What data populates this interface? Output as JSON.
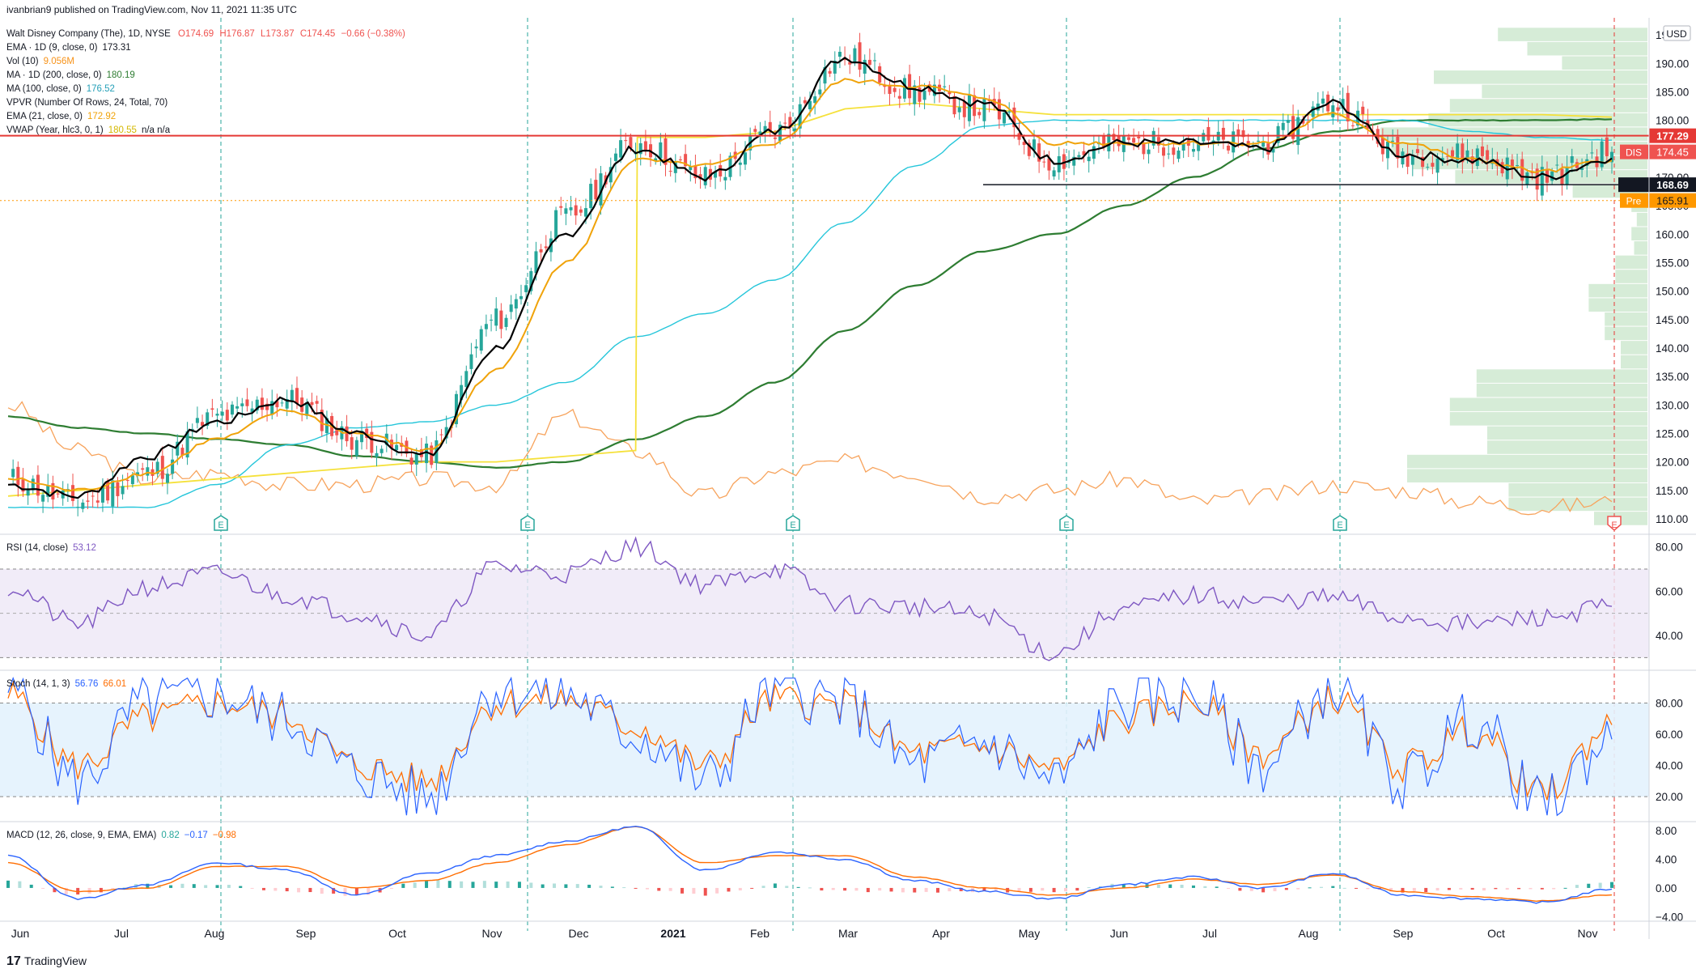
{
  "header": {
    "publisher": "ivanbrian9 published on TradingView.com, Nov 11, 2021 11:35 UTC"
  },
  "footer": {
    "brand": "TradingView"
  },
  "legend": {
    "symbol": {
      "name": "Walt Disney Company (The), 1D, NYSE",
      "o": "O174.69",
      "h": "H176.87",
      "l": "L173.87",
      "c": "C174.45",
      "chg": "−0.66 (−0.38%)"
    },
    "ema9": {
      "label": "EMA · 1D (9, close, 0)",
      "value": "173.31",
      "color": "#000000"
    },
    "vol": {
      "label": "Vol (10)",
      "value": "9.056M",
      "color": "#f7931a"
    },
    "ma200": {
      "label": "MA · 1D (200, close, 0)",
      "value": "180.19",
      "color": "#2e7d32"
    },
    "ma100": {
      "label": "MA (100, close, 0)",
      "value": "176.52",
      "color": "#26c6da"
    },
    "vpvr": {
      "label": "VPVR (Number Of Rows, 24, Total, 70)"
    },
    "ema21": {
      "label": "EMA (21, close, 0)",
      "value": "172.92",
      "color": "#f0a30a"
    },
    "vwap": {
      "label": "VWAP (Year, hlc3, 0, 1)",
      "value": "180.55",
      "extra": "n/a  n/a",
      "color": "#f5e13b"
    }
  },
  "rsi_legend": {
    "label": "RSI (14, close)",
    "value": "53.12",
    "color": "#7e57c2"
  },
  "stoch_legend": {
    "label": "Stoch (14, 1, 3)",
    "k": "56.76",
    "d": "66.01",
    "k_color": "#2962ff",
    "d_color": "#ff6d00"
  },
  "macd_legend": {
    "label": "MACD (12, 26, close, 9, EMA, EMA)",
    "hist": "0.82",
    "macd": "−0.17",
    "signal": "−0.98",
    "hist_color": "#26a69a",
    "macd_color": "#2962ff",
    "signal_color": "#ff6d00"
  },
  "price_labels": {
    "currency": "USD",
    "resistance": "177.29",
    "ticker": "DIS",
    "last": "174.45",
    "support": "168.69",
    "pre_tag": "Pre",
    "pre": "165.91"
  },
  "earnings_marker": "E",
  "chart_data": [
    {
      "type": "candlestick",
      "panel": "price",
      "title": "Walt Disney Company (The), 1D, NYSE",
      "x_ticks": [
        "Jun",
        "Jul",
        "Aug",
        "Sep",
        "Oct",
        "Nov",
        "Dec",
        "2021",
        "Feb",
        "Mar",
        "Apr",
        "May",
        "Jun",
        "Jul",
        "Aug",
        "Sep",
        "Oct",
        "Nov"
      ],
      "y_ticks": [
        "195.00",
        "190.00",
        "185.00",
        "180.00",
        "175.00",
        "170.00",
        "165.00",
        "160.00",
        "155.00",
        "150.00",
        "145.00",
        "140.00",
        "135.00",
        "130.00",
        "125.00",
        "120.00",
        "115.00",
        "110.00"
      ],
      "ylim": [
        108,
        198
      ],
      "close_path": {
        "x": [
          "2020-06",
          "2020-07",
          "2020-08",
          "2020-08-15",
          "2020-09",
          "2020-10",
          "2020-11",
          "2020-11-15",
          "2020-12",
          "2021-01",
          "2021-01-25",
          "2021-02",
          "2021-03",
          "2021-04",
          "2021-05",
          "2021-05-20",
          "2021-06",
          "2021-07",
          "2021-08",
          "2021-09",
          "2021-09-20",
          "2021-10",
          "2021-11",
          "2021-11-10"
        ],
        "y": [
          117,
          113,
          118,
          128,
          131,
          124,
          121,
          145,
          163,
          176,
          170,
          178,
          191,
          185,
          182,
          173,
          176,
          176,
          176,
          183,
          174,
          174,
          170,
          174.45
        ]
      },
      "series": [
        {
          "name": "EMA · 1D (9, close, 0)",
          "values": [
            116,
            114,
            121,
            127,
            131,
            125,
            121,
            140,
            160,
            175,
            170,
            178,
            191,
            186,
            183,
            173,
            176,
            176,
            175,
            183,
            174,
            173,
            170,
            173.31
          ]
        },
        {
          "name": "EMA (21, close, 0)",
          "values": [
            117,
            115,
            118,
            124,
            129,
            125,
            122,
            136,
            155,
            173,
            172,
            176,
            187,
            186,
            184,
            176,
            176,
            176,
            176,
            181,
            176,
            173,
            171,
            172.92
          ]
        },
        {
          "name": "MA (100, close, 0)",
          "values": [
            112,
            112,
            112,
            116,
            123,
            126,
            127,
            130,
            134,
            142,
            146,
            152,
            162,
            172,
            179,
            180,
            180,
            180,
            180,
            180,
            180,
            178,
            177,
            176.52
          ]
        },
        {
          "name": "MA · 1D (200, close, 0)",
          "values": [
            128,
            126,
            125,
            124,
            123,
            121,
            120,
            119,
            120,
            124,
            128,
            134,
            143,
            151,
            157,
            160,
            165,
            170,
            175,
            178,
            180,
            180,
            180,
            180.19
          ]
        },
        {
          "name": "VWAP (Year, hlc3, 0, 1)",
          "values": [
            114,
            115,
            116,
            117,
            118,
            119,
            120,
            120,
            121,
            122,
            177,
            178,
            182,
            183,
            182,
            181,
            181,
            181,
            181,
            181,
            181,
            181,
            181,
            180.55
          ]
        }
      ],
      "horizontal_lines": [
        {
          "name": "resistance",
          "value": 177.29,
          "color": "#e53935"
        },
        {
          "name": "support",
          "value": 168.69,
          "color": "#131722"
        },
        {
          "name": "pre-market",
          "value": 165.91,
          "color": "#ff9800"
        }
      ],
      "volume_profile_price_levels": [
        195,
        192.5,
        190,
        187.5,
        185,
        182.5,
        180,
        177.5,
        175,
        172.5,
        170,
        167.5,
        165,
        162.5,
        160,
        157.5,
        155,
        152.5,
        150,
        147.5,
        145,
        142.5,
        140,
        137.5,
        135,
        132.5,
        130,
        127.5,
        125,
        122.5,
        120,
        117.5,
        115,
        112.5,
        110
      ],
      "volume_profile_relative": [
        0.56,
        0.45,
        0.32,
        0.8,
        0.62,
        0.74,
        0.82,
        1.0,
        0.96,
        0.88,
        0.72,
        0.28,
        0.06,
        0.04,
        0.06,
        0.05,
        0.12,
        0.12,
        0.22,
        0.22,
        0.16,
        0.16,
        0.1,
        0.1,
        0.64,
        0.64,
        0.74,
        0.74,
        0.6,
        0.6,
        0.9,
        0.9,
        0.52,
        0.52,
        0.2
      ],
      "earnings_markers": [
        "2020-08",
        "2020-11",
        "2021-02",
        "2021-05",
        "2021-08",
        "2021-11"
      ],
      "volume_ma10": [
        130,
        122,
        117,
        118,
        116,
        116,
        117,
        116,
        128,
        122,
        114,
        118,
        120,
        118,
        114,
        115,
        117,
        113,
        114,
        116,
        115,
        113,
        112,
        113
      ]
    },
    {
      "type": "line",
      "panel": "rsi",
      "title": "RSI (14, close)",
      "y_ticks": [
        "80.00",
        "60.00",
        "40.00"
      ],
      "ylim": [
        25,
        85
      ],
      "bands": [
        30,
        70
      ],
      "values": [
        62,
        45,
        62,
        68,
        58,
        50,
        40,
        71,
        68,
        80,
        63,
        70,
        54,
        53,
        49,
        32,
        52,
        58,
        55,
        57,
        48,
        45,
        48,
        53.12
      ]
    },
    {
      "type": "line",
      "panel": "stoch",
      "title": "Stoch (14, 1, 3)",
      "y_ticks": [
        "80.00",
        "60.00",
        "40.00",
        "20.00"
      ],
      "ylim": [
        5,
        100
      ],
      "bands": [
        20,
        80
      ],
      "series": [
        {
          "name": "%K",
          "values": [
            90,
            30,
            80,
            85,
            70,
            35,
            20,
            90,
            85,
            60,
            30,
            90,
            80,
            40,
            55,
            30,
            80,
            85,
            40,
            90,
            30,
            70,
            15,
            56.76
          ]
        },
        {
          "name": "%D",
          "values": [
            85,
            40,
            70,
            80,
            72,
            40,
            30,
            80,
            82,
            65,
            40,
            82,
            78,
            48,
            52,
            38,
            70,
            80,
            48,
            82,
            40,
            62,
            22,
            66.01
          ]
        }
      ]
    },
    {
      "type": "bar+line",
      "panel": "macd",
      "title": "MACD (12, 26, close, 9, EMA, EMA)",
      "y_ticks": [
        "8.00",
        "4.00",
        "0.00",
        "-4.00"
      ],
      "ylim": [
        -4.4,
        9
      ],
      "series": [
        {
          "name": "MACD",
          "values": [
            4.5,
            -1.5,
            0.5,
            3.5,
            2.5,
            -1.0,
            2.0,
            4.5,
            6.5,
            8.5,
            2.5,
            5.0,
            4.0,
            1.0,
            -0.5,
            -1.5,
            0.5,
            1.5,
            0.0,
            2.0,
            -1.0,
            -1.5,
            -2.0,
            -0.17
          ]
        },
        {
          "name": "Signal",
          "values": [
            3.5,
            -0.5,
            0.0,
            3.0,
            3.0,
            0.0,
            1.0,
            3.5,
            6.0,
            8.5,
            3.5,
            4.5,
            4.5,
            1.5,
            0.0,
            -1.0,
            0.0,
            1.2,
            0.5,
            1.8,
            -0.5,
            -1.2,
            -1.8,
            -0.98
          ]
        },
        {
          "name": "Histogram",
          "values": [
            1.0,
            -1.0,
            0.5,
            0.5,
            -0.5,
            -1.0,
            1.0,
            1.0,
            0.5,
            0.0,
            -1.0,
            0.5,
            -0.5,
            -0.5,
            -0.5,
            -0.5,
            0.5,
            0.3,
            -0.5,
            0.2,
            -0.5,
            -0.3,
            -0.2,
            0.82
          ]
        }
      ]
    }
  ]
}
